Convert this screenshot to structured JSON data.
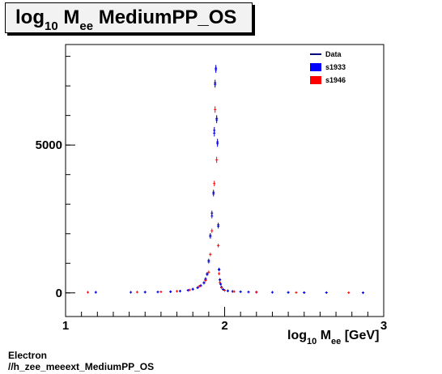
{
  "title": {
    "main": "log",
    "sub": "10",
    "rest1": " M",
    "sub2": "ee",
    "rest2": " MediumPP_OS"
  },
  "xlabel": {
    "a": "log",
    "sub": "10",
    "b": " M",
    "sub2": "ee",
    "c": " [GeV]"
  },
  "footer": {
    "line1": "Electron",
    "line2": "//h_zee_meeext_MediumPP_OS"
  },
  "legend": [
    {
      "label": "Data",
      "color": "#00007f",
      "style": "line"
    },
    {
      "label": "s1933",
      "color": "#0000ff",
      "style": "box"
    },
    {
      "label": "s1946",
      "color": "#ff0000",
      "style": "box"
    }
  ],
  "chart_data": {
    "type": "scatter",
    "xlim": [
      1,
      3
    ],
    "ylim": [
      -800,
      8400
    ],
    "xticks": [
      1,
      2,
      3
    ],
    "yticks": [
      0,
      5000
    ],
    "series": [
      {
        "name": "Data",
        "color": "#00007f",
        "x": [
          1.19,
          1.41,
          1.5,
          1.58,
          1.66,
          1.72,
          1.77,
          1.8,
          1.83,
          1.85,
          1.87,
          1.88,
          1.89,
          1.9,
          1.91,
          1.92,
          1.93,
          1.935,
          1.94,
          1.945,
          1.95,
          1.955,
          1.96,
          1.965,
          1.97,
          1.975,
          1.98,
          1.99,
          2.0,
          2.02,
          2.05,
          2.1,
          2.15,
          2.2,
          2.3,
          2.4,
          2.5,
          2.64,
          2.87
        ],
        "y": [
          20,
          20,
          25,
          30,
          40,
          60,
          90,
          130,
          180,
          250,
          350,
          480,
          650,
          1100,
          1950,
          2700,
          3400,
          5500,
          7100,
          7600,
          5900,
          5100,
          2300,
          800,
          450,
          300,
          200,
          120,
          90,
          70,
          50,
          40,
          30,
          25,
          20,
          15,
          10,
          10,
          5
        ]
      },
      {
        "name": "s1933",
        "color": "#0000ff",
        "x": [
          1.19,
          1.41,
          1.5,
          1.58,
          1.66,
          1.72,
          1.77,
          1.8,
          1.83,
          1.85,
          1.87,
          1.88,
          1.89,
          1.9,
          1.91,
          1.92,
          1.93,
          1.935,
          1.94,
          1.945,
          1.95,
          1.955,
          1.96,
          1.965,
          1.97,
          1.975,
          1.98,
          1.99,
          2.0,
          2.02,
          2.05,
          2.1,
          2.15,
          2.2,
          2.3,
          2.4,
          2.5,
          2.64,
          2.87
        ],
        "y": [
          20,
          20,
          25,
          30,
          40,
          60,
          85,
          120,
          170,
          240,
          330,
          450,
          620,
          1050,
          1900,
          2600,
          3350,
          5400,
          7050,
          7550,
          5850,
          5050,
          2250,
          780,
          440,
          290,
          190,
          115,
          85,
          65,
          48,
          38,
          28,
          22,
          18,
          14,
          10,
          8,
          5
        ]
      },
      {
        "name": "s1946",
        "color": "#ff0000",
        "x": [
          1.14,
          1.45,
          1.6,
          1.7,
          1.78,
          1.84,
          1.88,
          1.9,
          1.91,
          1.92,
          1.935,
          1.94,
          1.95,
          1.96,
          1.965,
          1.97,
          1.98,
          2.0,
          2.06,
          2.2,
          2.45,
          2.78
        ],
        "y": [
          20,
          25,
          35,
          55,
          100,
          220,
          420,
          700,
          1300,
          2100,
          3700,
          6200,
          4500,
          1600,
          650,
          350,
          180,
          90,
          45,
          25,
          12,
          6
        ]
      }
    ]
  }
}
